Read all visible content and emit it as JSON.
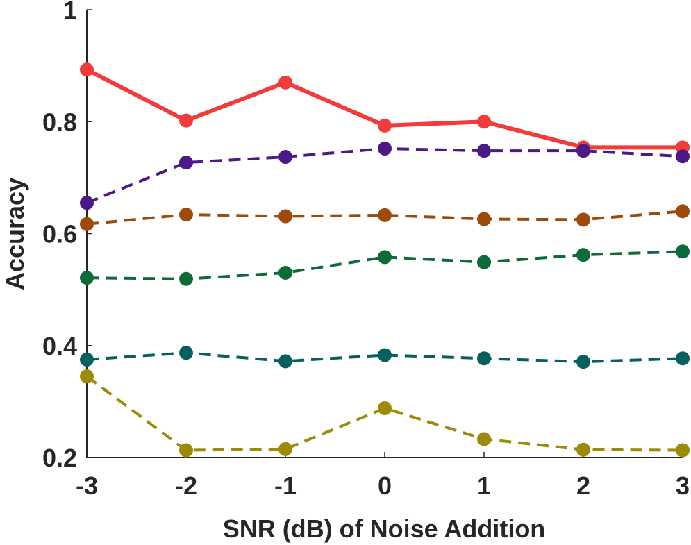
{
  "chart_data": {
    "type": "line",
    "title": "",
    "xlabel": "SNR (dB) of Noise Addition",
    "ylabel": "Accuracy",
    "x": [
      -3,
      -2,
      -1,
      0,
      1,
      2,
      3
    ],
    "x_tick_labels": [
      "-3",
      "-2",
      "-1",
      "0",
      "1",
      "2",
      "3"
    ],
    "y_tick_labels": [
      "0.2",
      "0.4",
      "0.6",
      "0.8",
      "1"
    ],
    "y_ticks": [
      0.2,
      0.4,
      0.6,
      0.8,
      1.0
    ],
    "xlim": [
      -3,
      3
    ],
    "ylim": [
      0.2,
      1.0
    ],
    "grid": false,
    "series": [
      {
        "name": "series-red",
        "color": "#f23b3b",
        "style": "solid",
        "values": [
          0.893,
          0.802,
          0.87,
          0.793,
          0.8,
          0.754,
          0.754
        ]
      },
      {
        "name": "series-purple",
        "color": "#4b1a86",
        "style": "dashed",
        "values": [
          0.655,
          0.727,
          0.737,
          0.752,
          0.748,
          0.748,
          0.738
        ]
      },
      {
        "name": "series-orange",
        "color": "#9e4a0a",
        "style": "dashed",
        "values": [
          0.617,
          0.634,
          0.631,
          0.633,
          0.626,
          0.625,
          0.64
        ]
      },
      {
        "name": "series-green",
        "color": "#0d6b38",
        "style": "dashed",
        "values": [
          0.521,
          0.519,
          0.53,
          0.558,
          0.549,
          0.562,
          0.568
        ]
      },
      {
        "name": "series-teal",
        "color": "#06615e",
        "style": "dashed",
        "values": [
          0.375,
          0.387,
          0.372,
          0.383,
          0.377,
          0.371,
          0.377
        ]
      },
      {
        "name": "series-olive",
        "color": "#9c8a08",
        "style": "dashed",
        "values": [
          0.345,
          0.213,
          0.215,
          0.288,
          0.233,
          0.214,
          0.213
        ]
      }
    ]
  }
}
